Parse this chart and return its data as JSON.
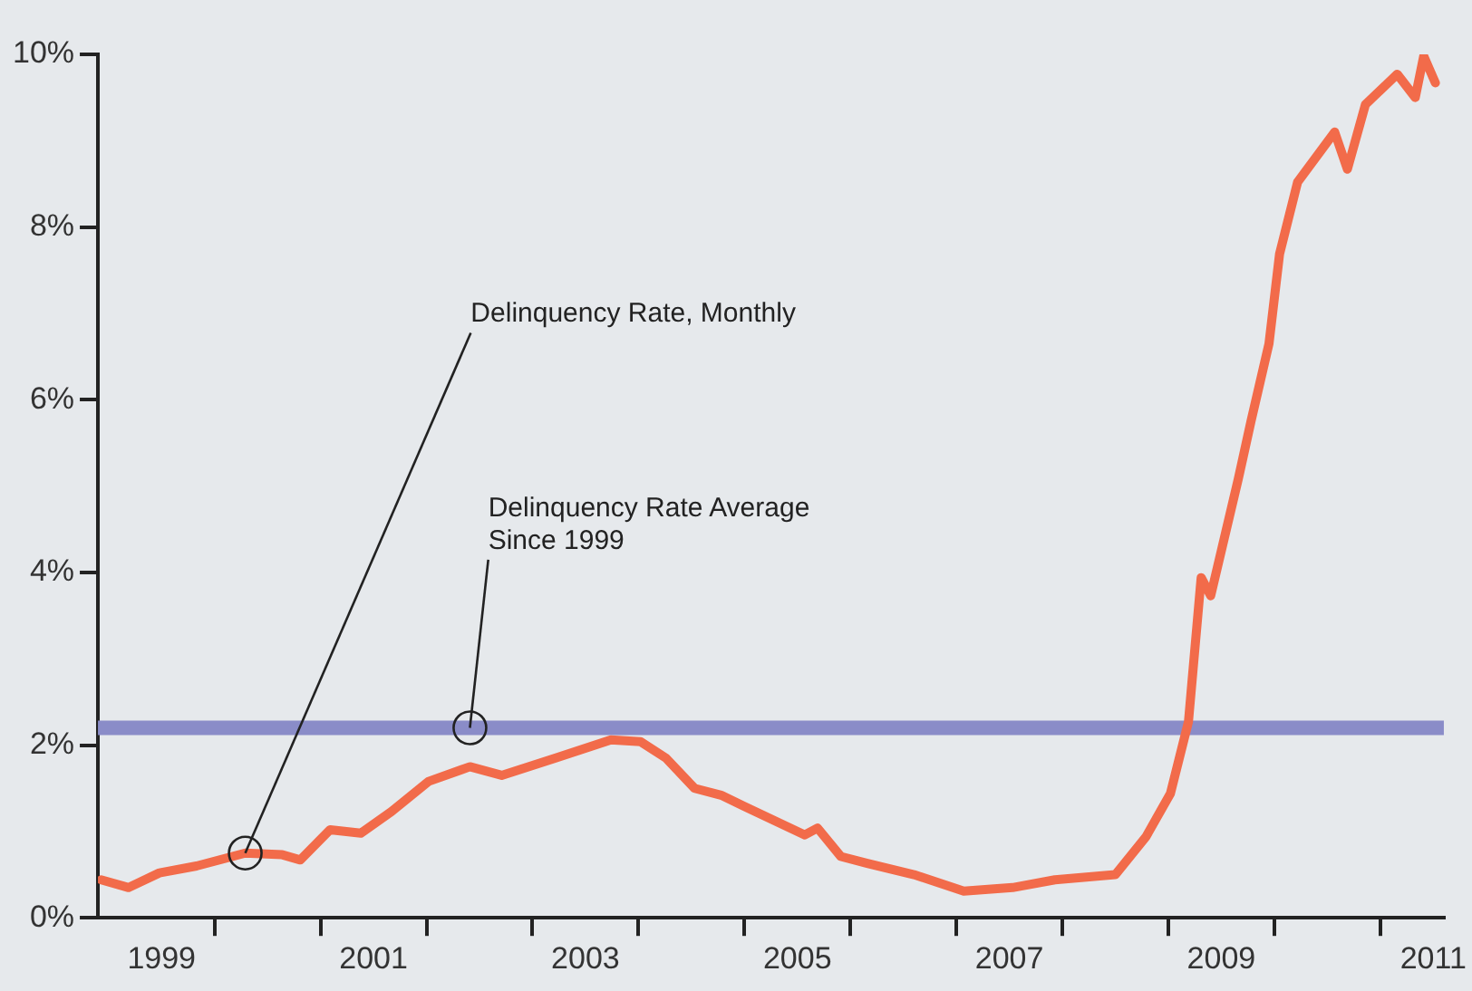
{
  "chart_data": {
    "type": "line",
    "x": [
      1998.93,
      1999.19,
      1999.48,
      1999.83,
      2000.29,
      2000.64,
      2000.81,
      2001.09,
      2001.38,
      2001.67,
      2002.02,
      2002.41,
      2002.71,
      2003.22,
      2003.74,
      2004.02,
      2004.26,
      2004.53,
      2004.78,
      2005.0,
      2005.57,
      2005.69,
      2005.91,
      2006.16,
      2006.6,
      2007.07,
      2007.53,
      2007.93,
      2008.5,
      2008.79,
      2009.02,
      2009.19,
      2009.31,
      2009.4,
      2009.66,
      2009.78,
      2009.95,
      2010.05,
      2010.22,
      2010.57,
      2010.69,
      2010.86,
      2011.16,
      2011.33,
      2011.41,
      2011.52
    ],
    "series": [
      {
        "color": "#f26b4a",
        "values": [
          0.44,
          0.35,
          0.52,
          0.6,
          0.75,
          0.73,
          0.67,
          1.02,
          0.98,
          1.23,
          1.58,
          1.75,
          1.65,
          1.85,
          2.06,
          2.04,
          1.85,
          1.5,
          1.42,
          1.29,
          0.96,
          1.04,
          0.71,
          0.63,
          0.5,
          0.31,
          0.35,
          0.44,
          0.5,
          0.94,
          1.44,
          2.27,
          3.94,
          3.73,
          5.08,
          5.75,
          6.65,
          7.69,
          8.52,
          9.1,
          8.67,
          9.42,
          9.77,
          9.5,
          9.98,
          9.67
        ]
      }
    ],
    "xlim": [
      1998.9,
      2011.6
    ],
    "xticks": [
      {
        "value": 1999.5,
        "label": "1999"
      },
      {
        "value": 2000,
        "label": null
      },
      {
        "value": 2001,
        "label": null
      },
      {
        "value": 2001.5,
        "label": "2001"
      },
      {
        "value": 2002,
        "label": null
      },
      {
        "value": 2003,
        "label": null
      },
      {
        "value": 2003.5,
        "label": "2003"
      },
      {
        "value": 2004,
        "label": null
      },
      {
        "value": 2005,
        "label": null
      },
      {
        "value": 2005.5,
        "label": "2005"
      },
      {
        "value": 2006,
        "label": null
      },
      {
        "value": 2007,
        "label": null
      },
      {
        "value": 2007.5,
        "label": "2007"
      },
      {
        "value": 2008,
        "label": null
      },
      {
        "value": 2009,
        "label": null
      },
      {
        "value": 2009.5,
        "label": "2009"
      },
      {
        "value": 2010,
        "label": null
      },
      {
        "value": 2011,
        "label": null
      },
      {
        "value": 2011.5,
        "label": "2011"
      }
    ],
    "ylim": [
      0,
      10
    ],
    "yticks": [
      {
        "value": 0,
        "label": "0%"
      },
      {
        "value": 2,
        "label": "2%"
      },
      {
        "value": 4,
        "label": "4%"
      },
      {
        "value": 6,
        "label": "6%"
      },
      {
        "value": 8,
        "label": "8%"
      },
      {
        "value": 10,
        "label": "10%"
      }
    ],
    "ref_lines": [
      {
        "axis": "y",
        "value": 2.2,
        "color": "#8a8cc8"
      }
    ],
    "annotations": [
      {
        "text": "Delinquency Rate, Monthly",
        "x": 2000.29,
        "y": 0.75
      },
      {
        "text": "Delinquency Rate Average\nSince 1999",
        "x": 2002.41,
        "y": 2.2
      }
    ],
    "grid": false,
    "legend": false,
    "marker": "none",
    "line_style": "solid"
  }
}
